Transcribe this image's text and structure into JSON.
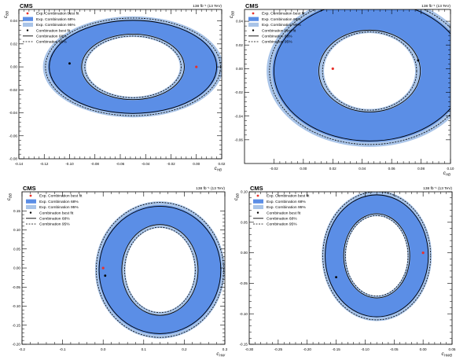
{
  "colors": {
    "exp68": "#5b8ee6",
    "exp95": "#a9c4e8",
    "frame": "#000000",
    "exp_best_fit": "#e8302a"
  },
  "chart_data": [
    {
      "type": "contour",
      "experiment": "CMS",
      "lumi": "138 fb⁻¹ (13 TeV)",
      "xlabel": "c_HB",
      "ylabel": "c_BB",
      "xlim": [
        -0.14,
        0.02
      ],
      "ylim": [
        -0.08,
        0.05
      ],
      "xticks": [
        "-0.14",
        "-0.12",
        "-0.10",
        "-0.08",
        "-0.06",
        "-0.04",
        "-0.02",
        "0.00",
        "0.02"
      ],
      "yticks": [
        "-0.08",
        "-0.06",
        "-0.04",
        "-0.02",
        "0.00",
        "0.02",
        "0.04"
      ],
      "legend": [
        "Exp. Combination best fit",
        "Exp. Combination 68%",
        "Exp. Combination 95%",
        "Combination best fit",
        "Combination 68%",
        "Combination 95%"
      ],
      "exp_best_fit": [
        0.0,
        0.0
      ],
      "obs_best_fit": [
        -0.1,
        0.003
      ],
      "center": [
        -0.05,
        0.0
      ],
      "exp95": {
        "outer": [
          0.071,
          0.044
        ],
        "inner": [
          0.037,
          0.026
        ]
      },
      "exp68": {
        "outer": [
          0.067,
          0.041
        ],
        "inner": [
          0.041,
          0.029
        ]
      },
      "obs95": {
        "outer": [
          0.069,
          0.0425
        ],
        "inner": [
          0.038,
          0.0268
        ]
      },
      "obs68": {
        "outer": [
          0.066,
          0.0405
        ],
        "inner": [
          0.0405,
          0.0285
        ]
      }
    },
    {
      "type": "contour",
      "experiment": "CMS",
      "lumi": "138 fb⁻¹ (13 TeV)",
      "xlabel": "c_HB",
      "ylabel": "c_BB",
      "xlim": [
        -0.04,
        0.1
      ],
      "ylim": [
        -0.08,
        0.05
      ],
      "xticks": [
        "-0.02",
        "0.00",
        "0.02",
        "0.04",
        "0.06",
        "0.08",
        "0.10"
      ],
      "yticks": [
        "-0.06",
        "-0.04",
        "-0.02",
        "0.00",
        "0.02",
        "0.04"
      ],
      "legend": [
        "Exp. Combination best fit",
        "Exp. Combination 68%",
        "Exp. Combination 95%",
        "Combination best fit",
        "Combination 68%",
        "Combination 95%"
      ],
      "exp_best_fit": [
        0.02,
        0.0
      ],
      "obs_best_fit": [
        0.078,
        0.007
      ],
      "center": [
        0.045,
        -0.002
      ],
      "exp95": {
        "outer": [
          0.07,
          0.064
        ],
        "inner": [
          0.031,
          0.032
        ]
      },
      "exp68": {
        "outer": [
          0.066,
          0.06
        ],
        "inner": [
          0.035,
          0.035
        ]
      },
      "obs95": {
        "outer": [
          0.068,
          0.062
        ],
        "inner": [
          0.032,
          0.033
        ]
      },
      "obs68": {
        "outer": [
          0.065,
          0.059
        ],
        "inner": [
          0.0345,
          0.0345
        ]
      }
    },
    {
      "type": "contour",
      "experiment": "CMS",
      "lumi": "138 fb⁻¹ (13 TeV)",
      "xlabel": "c_HW",
      "ylabel": "c_BB",
      "xlim": [
        -0.2,
        0.3
      ],
      "ylim": [
        -0.2,
        0.2
      ],
      "xticks": [
        "-0.2",
        "-0.1",
        "0.0",
        "0.1",
        "0.2",
        "0.3"
      ],
      "yticks": [
        "-0.20",
        "-0.15",
        "-0.10",
        "-0.05",
        "0.00",
        "0.05",
        "0.10",
        "0.15"
      ],
      "legend": [
        "Exp. Combination best fit",
        "Exp. Combination 68%",
        "Exp. Combination 95%",
        "Combination best fit",
        "Combination 68%",
        "Combination 95%"
      ],
      "exp_best_fit": [
        0.0,
        0.0
      ],
      "obs_best_fit": [
        0.005,
        -0.02
      ],
      "center": [
        0.14,
        -0.005
      ],
      "exp95": {
        "outer": [
          0.16,
          0.18
        ],
        "inner": [
          0.085,
          0.11
        ]
      },
      "exp68": {
        "outer": [
          0.152,
          0.17
        ],
        "inner": [
          0.095,
          0.12
        ]
      },
      "obs95": {
        "outer": [
          0.157,
          0.177
        ],
        "inner": [
          0.087,
          0.112
        ]
      },
      "obs68": {
        "outer": [
          0.15,
          0.167
        ],
        "inner": [
          0.094,
          0.119
        ]
      }
    },
    {
      "type": "contour",
      "experiment": "CMS",
      "lumi": "138 fb⁻¹ (13 TeV)",
      "xlabel": "c_HWB",
      "ylabel": "c_BB",
      "xlim": [
        -0.3,
        0.05
      ],
      "ylim": [
        -0.15,
        0.1
      ],
      "xticks": [
        "-0.30",
        "-0.25",
        "-0.20",
        "-0.15",
        "-0.10",
        "-0.05",
        "0.00",
        "0.05"
      ],
      "yticks": [
        "-0.15",
        "-0.10",
        "-0.05",
        "0.00",
        "0.05",
        "0.10"
      ],
      "legend": [
        "Exp. Combination best fit",
        "Exp. Combination 68%",
        "Exp. Combination 95%",
        "Combination best fit",
        "Combination 68%",
        "Combination 95%"
      ],
      "exp_best_fit": [
        0.0,
        0.0
      ],
      "obs_best_fit": [
        -0.15,
        -0.04
      ],
      "center": [
        -0.08,
        -0.005
      ],
      "exp95": {
        "outer": [
          0.095,
          0.107
        ],
        "inner": [
          0.053,
          0.065
        ]
      },
      "exp68": {
        "outer": [
          0.09,
          0.101
        ],
        "inner": [
          0.058,
          0.07
        ]
      },
      "obs95": {
        "outer": [
          0.093,
          0.105
        ],
        "inner": [
          0.054,
          0.066
        ]
      },
      "obs68": {
        "outer": [
          0.089,
          0.1
        ],
        "inner": [
          0.057,
          0.069
        ]
      }
    }
  ]
}
